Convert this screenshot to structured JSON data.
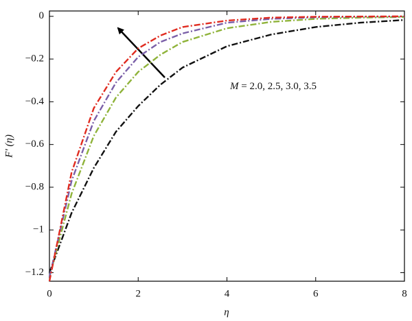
{
  "chart_data": {
    "type": "line",
    "x_label": "η",
    "y_label": "F′ (η)",
    "annotation": {
      "symbol": "M",
      "text": "= 2.0, 2.5, 3.0, 3.5"
    },
    "x": [
      0,
      0.5,
      1,
      1.5,
      2,
      2.5,
      3,
      4,
      5,
      6,
      7,
      8
    ],
    "series": [
      {
        "color": "#111111",
        "values": [
          -1.2,
          -0.92,
          -0.71,
          -0.54,
          -0.42,
          -0.32,
          -0.24,
          -0.14,
          -0.085,
          -0.05,
          -0.03,
          -0.017
        ]
      },
      {
        "color": "#8fb33a",
        "values": [
          -1.22,
          -0.83,
          -0.56,
          -0.38,
          -0.26,
          -0.18,
          -0.12,
          -0.056,
          -0.026,
          -0.012,
          -0.006,
          -0.003
        ]
      },
      {
        "color": "#7a5fa8",
        "values": [
          -1.22,
          -0.77,
          -0.49,
          -0.31,
          -0.19,
          -0.12,
          -0.08,
          -0.03,
          -0.012,
          -0.005,
          -0.002,
          -0.001
        ]
      },
      {
        "color": "#e02b1f",
        "values": [
          -1.24,
          -0.73,
          -0.43,
          -0.26,
          -0.15,
          -0.09,
          -0.05,
          -0.02,
          -0.006,
          -0.002,
          -0.001,
          0
        ]
      }
    ],
    "xlim": [
      0,
      8
    ],
    "xticks": [
      0,
      2,
      4,
      6,
      8
    ],
    "ylim": [
      -1.24,
      0.025
    ],
    "yticks": [
      0,
      {
        "value": -0.2,
        "label": "−0.2"
      },
      {
        "value": -0.4,
        "label": "−0.4"
      },
      {
        "value": -0.6,
        "label": "−0.6"
      },
      {
        "value": -0.8,
        "label": "−0.8"
      },
      {
        "value": -1,
        "label": "−1"
      },
      {
        "value": -1.2,
        "label": "−1.2"
      }
    ],
    "grid": false
  }
}
